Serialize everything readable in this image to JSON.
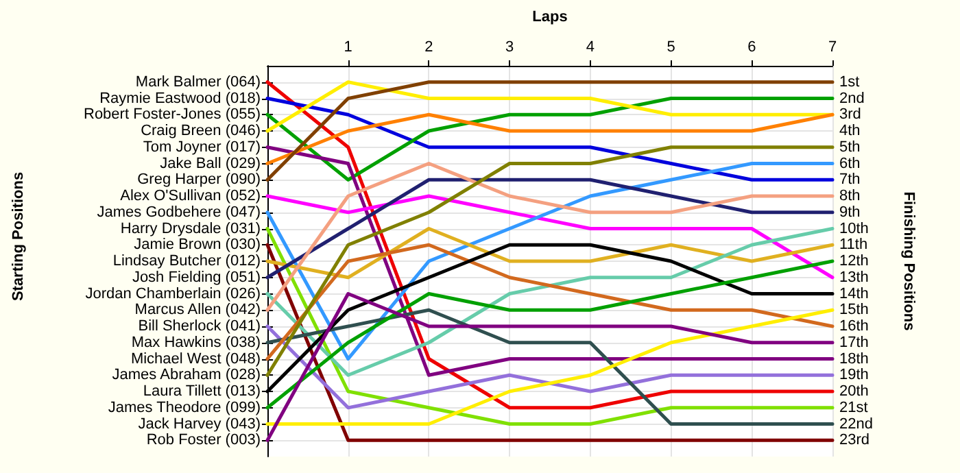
{
  "chart_data": {
    "type": "line",
    "xlabel": "Laps",
    "y2label": "Finishing Positions",
    "annotations": [
      "Starting Positions"
    ],
    "x": [
      0,
      1,
      2,
      3,
      4,
      5,
      6,
      7
    ],
    "xlim": [
      0,
      7
    ],
    "xticks": [
      1,
      2,
      3,
      4,
      5,
      6,
      7
    ],
    "y_categories": [
      "Mark Balmer (064)",
      "Raymie Eastwood (018)",
      "Robert Foster-Jones (055)",
      "Craig Breen (046)",
      "Tom Joyner (017)",
      "Jake Ball (029)",
      "Greg Harper (090)",
      "Alex O'Sullivan (052)",
      "James Godbehere (047)",
      "Harry Drysdale (031)",
      "Jamie Brown (030)",
      "Lindsay Butcher (012)",
      "Josh Fielding (051)",
      "Jordan Chamberlain (026)",
      "Marcus Allen (042)",
      "Bill Sherlock (041)",
      "Max Hawkins (038)",
      "Michael West (048)",
      "James Abraham (028)",
      "Laura Tillett (013)",
      "James Theodore (099)",
      "Jack Harvey (043)",
      "Rob Foster (003)"
    ],
    "y2lim": [
      24,
      0
    ],
    "y2ticks": [
      {
        "value": 1,
        "label": "1st"
      },
      {
        "value": 2,
        "label": "2nd"
      },
      {
        "value": 3,
        "label": "3rd"
      },
      {
        "value": 4,
        "label": "4th"
      },
      {
        "value": 5,
        "label": "5th"
      },
      {
        "value": 6,
        "label": "6th"
      },
      {
        "value": 7,
        "label": "7th"
      },
      {
        "value": 8,
        "label": "8th"
      },
      {
        "value": 9,
        "label": "9th"
      },
      {
        "value": 10,
        "label": "10th"
      },
      {
        "value": 11,
        "label": "11th"
      },
      {
        "value": 12,
        "label": "12th"
      },
      {
        "value": 13,
        "label": "13th"
      },
      {
        "value": 14,
        "label": "14th"
      },
      {
        "value": 15,
        "label": "15th"
      },
      {
        "value": 16,
        "label": "16th"
      },
      {
        "value": 17,
        "label": "17th"
      },
      {
        "value": 18,
        "label": "18th"
      },
      {
        "value": 19,
        "label": "19th"
      },
      {
        "value": 20,
        "label": "20th"
      },
      {
        "value": 21,
        "label": "21st"
      },
      {
        "value": 22,
        "label": "22nd"
      },
      {
        "value": 23,
        "label": "23rd"
      }
    ],
    "grid": true,
    "marker": "none",
    "series": [
      {
        "axis": "y2",
        "color": "#ee0000",
        "values": [
          1,
          5,
          18,
          21,
          21,
          20,
          20,
          20
        ]
      },
      {
        "axis": "y2",
        "color": "#0000dd",
        "values": [
          2,
          3,
          5,
          5,
          5,
          6,
          7,
          7
        ]
      },
      {
        "axis": "y2",
        "color": "#00a000",
        "values": [
          3,
          7,
          4,
          3,
          3,
          2,
          2,
          2
        ]
      },
      {
        "axis": "y2",
        "color": "#ffee00",
        "values": [
          4,
          1,
          2,
          2,
          2,
          3,
          3,
          3
        ]
      },
      {
        "axis": "y2",
        "color": "#800080",
        "values": [
          5,
          6,
          19,
          18,
          18,
          18,
          18,
          18
        ]
      },
      {
        "axis": "y2",
        "color": "#ff8000",
        "values": [
          6,
          4,
          3,
          4,
          4,
          4,
          4,
          3
        ]
      },
      {
        "axis": "y2",
        "color": "#804000",
        "values": [
          7,
          2,
          1,
          1,
          1,
          1,
          1,
          1
        ]
      },
      {
        "axis": "y2",
        "color": "#ff00ff",
        "values": [
          8,
          9,
          8,
          9,
          10,
          10,
          10,
          13
        ]
      },
      {
        "axis": "y2",
        "color": "#3399ff",
        "values": [
          9,
          18,
          12,
          10,
          8,
          7,
          6,
          6
        ]
      },
      {
        "axis": "y2",
        "color": "#80e000",
        "values": [
          10,
          20,
          21,
          22,
          22,
          21,
          21,
          21
        ]
      },
      {
        "axis": "y2",
        "color": "#800000",
        "values": [
          11,
          23,
          23,
          23,
          23,
          23,
          23,
          23
        ]
      },
      {
        "axis": "y2",
        "color": "#e0b020",
        "values": [
          12,
          13,
          10,
          12,
          12,
          11,
          12,
          11
        ]
      },
      {
        "axis": "y2",
        "color": "#202070",
        "values": [
          13,
          10,
          7,
          7,
          7,
          8,
          9,
          9
        ]
      },
      {
        "axis": "y2",
        "color": "#66ccaa",
        "values": [
          14,
          19,
          17,
          14,
          13,
          13,
          11,
          10
        ]
      },
      {
        "axis": "y2",
        "color": "#f4a080",
        "values": [
          15,
          8,
          6,
          8,
          9,
          9,
          8,
          8
        ]
      },
      {
        "axis": "y2",
        "color": "#9370db",
        "values": [
          16,
          21,
          20,
          19,
          20,
          19,
          19,
          19
        ]
      },
      {
        "axis": "y2",
        "color": "#2f4f4f",
        "values": [
          17,
          16,
          15,
          17,
          17,
          22,
          22,
          22
        ]
      },
      {
        "axis": "y2",
        "color": "#d2691e",
        "values": [
          18,
          12,
          11,
          13,
          14,
          15,
          15,
          16
        ]
      },
      {
        "axis": "y2",
        "color": "#808000",
        "values": [
          19,
          11,
          9,
          6,
          6,
          5,
          5,
          5
        ]
      },
      {
        "axis": "y2",
        "color": "#000000",
        "values": [
          20,
          15,
          13,
          11,
          11,
          12,
          14,
          14
        ]
      },
      {
        "axis": "y2",
        "color": "#00a000",
        "values": [
          21,
          17,
          14,
          15,
          15,
          14,
          13,
          12
        ]
      },
      {
        "axis": "y2",
        "color": "#ffee00",
        "values": [
          22,
          22,
          22,
          20,
          19,
          17,
          16,
          15
        ]
      },
      {
        "axis": "y2",
        "color": "#800080",
        "values": [
          23,
          14,
          16,
          16,
          16,
          16,
          17,
          17
        ]
      }
    ]
  }
}
